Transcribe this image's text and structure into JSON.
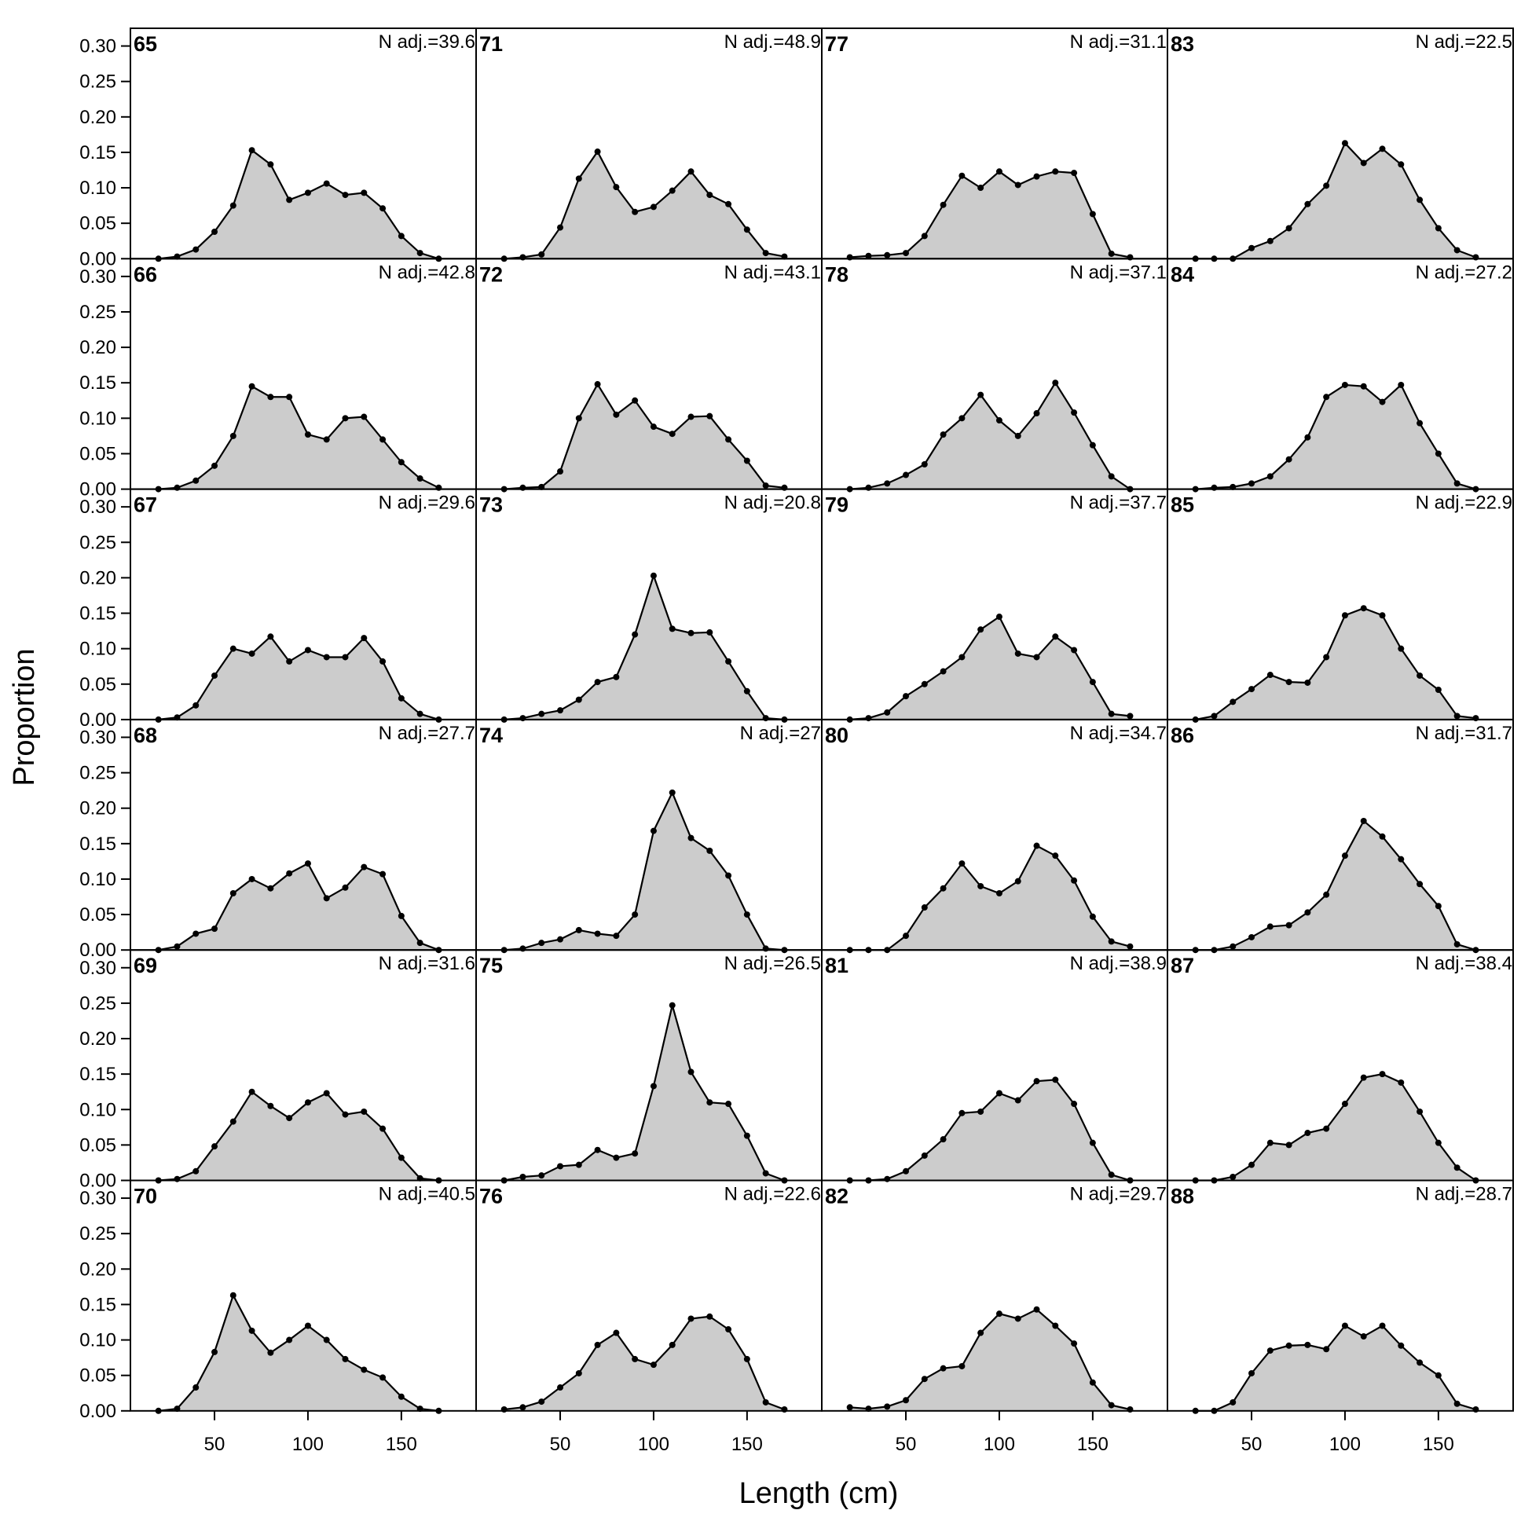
{
  "figure": {
    "xlabel": "Length (cm)",
    "ylabel": "Proportion"
  },
  "chart_data": {
    "type": "area",
    "x": [
      20,
      30,
      40,
      50,
      60,
      70,
      80,
      90,
      100,
      110,
      120,
      130,
      140,
      150,
      160,
      170
    ],
    "xticks": [
      50,
      100,
      150
    ],
    "xtick_labels": [
      "50",
      "100",
      "150"
    ],
    "yticks": [
      0,
      0.05,
      0.1,
      0.15,
      0.2,
      0.25,
      0.3
    ],
    "ytick_labels": [
      "0.00",
      "0.05",
      "0.10",
      "0.15",
      "0.20",
      "0.25",
      "0.30"
    ],
    "xlim": [
      5,
      190
    ],
    "ylim": [
      0,
      0.325
    ],
    "fill_color": "#cccccc",
    "line_color": "#000000",
    "grid": false,
    "panels": [
      {
        "id": "65",
        "n_label": "N adj.=39.6",
        "values": [
          0,
          0.003,
          0.013,
          0.038,
          0.075,
          0.153,
          0.133,
          0.083,
          0.093,
          0.106,
          0.09,
          0.093,
          0.071,
          0.032,
          0.008,
          0
        ]
      },
      {
        "id": "66",
        "n_label": "N adj.=42.8",
        "values": [
          0,
          0.002,
          0.012,
          0.033,
          0.075,
          0.145,
          0.13,
          0.13,
          0.077,
          0.07,
          0.1,
          0.102,
          0.07,
          0.038,
          0.015,
          0.002
        ]
      },
      {
        "id": "67",
        "n_label": "N adj.=29.6",
        "values": [
          0,
          0.003,
          0.02,
          0.062,
          0.1,
          0.093,
          0.117,
          0.082,
          0.098,
          0.088,
          0.088,
          0.115,
          0.082,
          0.03,
          0.008,
          0
        ]
      },
      {
        "id": "68",
        "n_label": "N adj.=27.7",
        "values": [
          0,
          0.005,
          0.023,
          0.03,
          0.08,
          0.1,
          0.087,
          0.108,
          0.122,
          0.073,
          0.088,
          0.117,
          0.107,
          0.048,
          0.01,
          0
        ]
      },
      {
        "id": "69",
        "n_label": "N adj.=31.6",
        "values": [
          0,
          0.002,
          0.013,
          0.048,
          0.083,
          0.125,
          0.105,
          0.088,
          0.11,
          0.123,
          0.093,
          0.097,
          0.073,
          0.032,
          0.003,
          0
        ]
      },
      {
        "id": "70",
        "n_label": "N adj.=40.5",
        "values": [
          0,
          0.003,
          0.033,
          0.083,
          0.163,
          0.113,
          0.082,
          0.1,
          0.12,
          0.1,
          0.073,
          0.058,
          0.047,
          0.02,
          0.003,
          0
        ]
      },
      {
        "id": "71",
        "n_label": "N adj.=48.9",
        "values": [
          0,
          0.002,
          0.006,
          0.044,
          0.113,
          0.151,
          0.101,
          0.066,
          0.073,
          0.096,
          0.123,
          0.09,
          0.077,
          0.041,
          0.008,
          0.003
        ]
      },
      {
        "id": "72",
        "n_label": "N adj.=43.1",
        "values": [
          0,
          0.002,
          0.003,
          0.025,
          0.1,
          0.148,
          0.105,
          0.125,
          0.088,
          0.078,
          0.102,
          0.103,
          0.07,
          0.04,
          0.005,
          0.002
        ]
      },
      {
        "id": "73",
        "n_label": "N adj.=20.8",
        "values": [
          0,
          0.002,
          0.008,
          0.013,
          0.028,
          0.053,
          0.06,
          0.12,
          0.203,
          0.128,
          0.122,
          0.123,
          0.082,
          0.04,
          0.002,
          0
        ]
      },
      {
        "id": "74",
        "n_label": "N adj.=27",
        "values": [
          0,
          0.002,
          0.01,
          0.015,
          0.028,
          0.023,
          0.02,
          0.05,
          0.168,
          0.222,
          0.158,
          0.14,
          0.105,
          0.05,
          0.002,
          0
        ]
      },
      {
        "id": "75",
        "n_label": "N adj.=26.5",
        "values": [
          0,
          0.005,
          0.007,
          0.02,
          0.022,
          0.043,
          0.032,
          0.038,
          0.133,
          0.247,
          0.153,
          0.11,
          0.108,
          0.063,
          0.01,
          0
        ]
      },
      {
        "id": "76",
        "n_label": "N adj.=22.6",
        "values": [
          0.002,
          0.005,
          0.013,
          0.033,
          0.053,
          0.093,
          0.11,
          0.073,
          0.065,
          0.093,
          0.13,
          0.133,
          0.115,
          0.073,
          0.012,
          0.002
        ]
      },
      {
        "id": "77",
        "n_label": "N adj.=31.1",
        "values": [
          0.002,
          0.004,
          0.005,
          0.008,
          0.032,
          0.076,
          0.117,
          0.1,
          0.123,
          0.104,
          0.116,
          0.123,
          0.121,
          0.063,
          0.007,
          0.002
        ]
      },
      {
        "id": "78",
        "n_label": "N adj.=37.1",
        "values": [
          0,
          0.002,
          0.008,
          0.02,
          0.035,
          0.077,
          0.1,
          0.133,
          0.097,
          0.075,
          0.107,
          0.15,
          0.108,
          0.062,
          0.018,
          0
        ]
      },
      {
        "id": "79",
        "n_label": "N adj.=37.7",
        "values": [
          0,
          0.002,
          0.01,
          0.033,
          0.05,
          0.068,
          0.088,
          0.127,
          0.145,
          0.093,
          0.088,
          0.117,
          0.098,
          0.053,
          0.008,
          0.005
        ]
      },
      {
        "id": "80",
        "n_label": "N adj.=34.7",
        "values": [
          0,
          0,
          0,
          0.02,
          0.06,
          0.087,
          0.122,
          0.09,
          0.08,
          0.097,
          0.147,
          0.133,
          0.098,
          0.047,
          0.012,
          0.005
        ]
      },
      {
        "id": "81",
        "n_label": "N adj.=38.9",
        "values": [
          0,
          0,
          0.002,
          0.013,
          0.035,
          0.058,
          0.095,
          0.097,
          0.123,
          0.113,
          0.14,
          0.142,
          0.108,
          0.053,
          0.008,
          0
        ]
      },
      {
        "id": "82",
        "n_label": "N adj.=29.7",
        "values": [
          0.005,
          0.003,
          0.006,
          0.015,
          0.045,
          0.06,
          0.063,
          0.11,
          0.137,
          0.13,
          0.143,
          0.12,
          0.095,
          0.04,
          0.008,
          0.002
        ]
      },
      {
        "id": "83",
        "n_label": "N adj.=22.5",
        "values": [
          0,
          0,
          0,
          0.015,
          0.025,
          0.043,
          0.077,
          0.103,
          0.163,
          0.135,
          0.155,
          0.133,
          0.083,
          0.043,
          0.012,
          0.002
        ]
      },
      {
        "id": "84",
        "n_label": "N adj.=27.2",
        "values": [
          0,
          0.002,
          0.003,
          0.008,
          0.018,
          0.042,
          0.073,
          0.13,
          0.147,
          0.145,
          0.123,
          0.147,
          0.093,
          0.05,
          0.008,
          0
        ]
      },
      {
        "id": "85",
        "n_label": "N adj.=22.9",
        "values": [
          0,
          0.005,
          0.025,
          0.043,
          0.063,
          0.053,
          0.052,
          0.088,
          0.147,
          0.157,
          0.147,
          0.1,
          0.062,
          0.042,
          0.005,
          0.002
        ]
      },
      {
        "id": "86",
        "n_label": "N adj.=31.7",
        "values": [
          0,
          0,
          0.005,
          0.018,
          0.033,
          0.035,
          0.053,
          0.078,
          0.133,
          0.182,
          0.16,
          0.128,
          0.093,
          0.062,
          0.008,
          0
        ]
      },
      {
        "id": "87",
        "n_label": "N adj.=38.4",
        "values": [
          0,
          0,
          0.005,
          0.022,
          0.053,
          0.05,
          0.067,
          0.073,
          0.108,
          0.145,
          0.15,
          0.138,
          0.097,
          0.053,
          0.018,
          0
        ]
      },
      {
        "id": "88",
        "n_label": "N adj.=28.7",
        "values": [
          0,
          0,
          0.012,
          0.053,
          0.085,
          0.092,
          0.093,
          0.087,
          0.12,
          0.105,
          0.12,
          0.092,
          0.068,
          0.05,
          0.01,
          0.002
        ]
      }
    ]
  }
}
